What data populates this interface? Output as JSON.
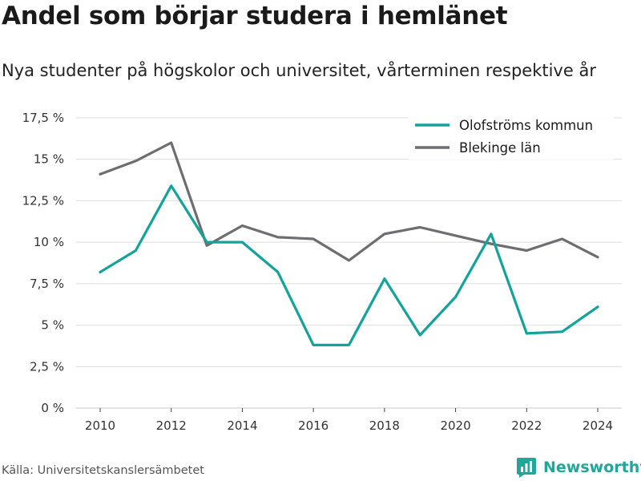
{
  "title": "Andel som börjar studera i hemlänet",
  "subtitle": "Nya studenter på högskolor och universitet, vårterminen respektive år",
  "source": "Källa: Universitetskanslersämbetet",
  "brand": {
    "name": "Newsworthy",
    "icon": "newsworthy-logo-icon",
    "color": "#21a79a"
  },
  "chart_data": {
    "type": "line",
    "x": [
      2010,
      2011,
      2012,
      2013,
      2014,
      2015,
      2016,
      2017,
      2018,
      2019,
      2020,
      2021,
      2022,
      2023,
      2024
    ],
    "series": [
      {
        "name": "Olofströms kommun",
        "color": "#12a39a",
        "values": [
          8.2,
          9.5,
          13.4,
          10.0,
          10.0,
          8.2,
          3.8,
          3.8,
          7.8,
          4.4,
          6.7,
          10.5,
          4.5,
          4.6,
          6.1
        ]
      },
      {
        "name": "Blekinge län",
        "color": "#6e6d72",
        "values": [
          14.1,
          14.9,
          16.0,
          9.8,
          11.0,
          10.3,
          10.2,
          8.9,
          10.5,
          10.9,
          10.4,
          9.9,
          9.5,
          10.2,
          9.1
        ]
      }
    ],
    "ylim": [
      0,
      17.5
    ],
    "yticks": [
      0,
      2.5,
      5,
      7.5,
      10,
      12.5,
      15,
      17.5
    ],
    "ytick_labels": [
      "0 %",
      "2,5 %",
      "5 %",
      "7,5 %",
      "10 %",
      "12,5 %",
      "15 %",
      "17,5 %"
    ],
    "xticks": [
      2010,
      2012,
      2014,
      2016,
      2018,
      2020,
      2022,
      2024
    ],
    "xtick_labels": [
      "2010",
      "2012",
      "2014",
      "2016",
      "2018",
      "2020",
      "2022",
      "2024"
    ],
    "xlabel": "",
    "ylabel": "",
    "grid": true,
    "legend_position": "top-right"
  }
}
